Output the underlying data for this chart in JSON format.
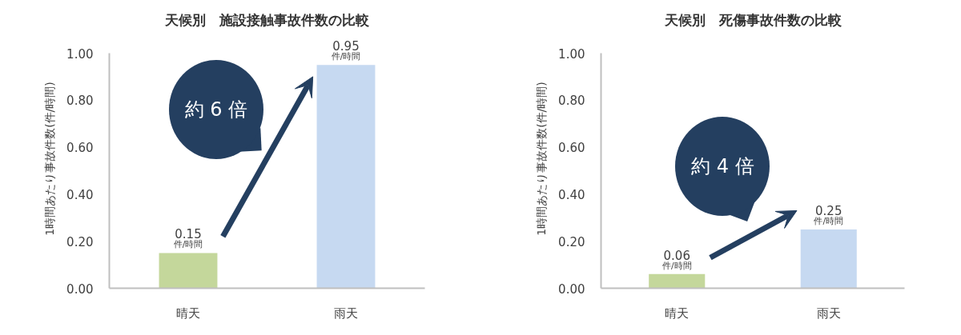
{
  "chart_data": [
    {
      "type": "bar",
      "title": "天候別　施設接触事故件数の比較",
      "ylabel": "1時間あたり事故件数(件/時間)",
      "categories": [
        "晴天",
        "雨天"
      ],
      "values": [
        0.15,
        0.95
      ],
      "colors": [
        "#c4d79b",
        "#c6d9f1"
      ],
      "value_labels": [
        "0.15\n件/時間",
        "0.95\n件/時間"
      ],
      "ylim": [
        0,
        1
      ],
      "yticks": [
        {
          "value": 0,
          "label": "0.00"
        },
        {
          "value": 0.2,
          "label": "0.20"
        },
        {
          "value": 0.4,
          "label": "0.40"
        },
        {
          "value": 0.6,
          "label": "0.60"
        },
        {
          "value": 0.8,
          "label": "0.80"
        },
        {
          "value": 1,
          "label": "1.00"
        }
      ],
      "grid": false,
      "annotations": [
        "約 6 倍"
      ]
    },
    {
      "type": "bar",
      "title": "天候別　死傷事故件数の比較",
      "ylabel": "1時間あたり事故件数(件/時間)",
      "categories": [
        "晴天",
        "雨天"
      ],
      "values": [
        0.06,
        0.25
      ],
      "colors": [
        "#c4d79b",
        "#c6d9f1"
      ],
      "value_labels": [
        "0.06\n件/時間",
        "0.25\n件/時間"
      ],
      "ylim": [
        0,
        1
      ],
      "yticks": [
        {
          "value": 0,
          "label": "0.00"
        },
        {
          "value": 0.2,
          "label": "0.20"
        },
        {
          "value": 0.4,
          "label": "0.40"
        },
        {
          "value": 0.6,
          "label": "0.60"
        },
        {
          "value": 0.8,
          "label": "0.80"
        },
        {
          "value": 1,
          "label": "1.00"
        }
      ],
      "grid": false,
      "annotations": [
        "約 4 倍"
      ]
    }
  ]
}
